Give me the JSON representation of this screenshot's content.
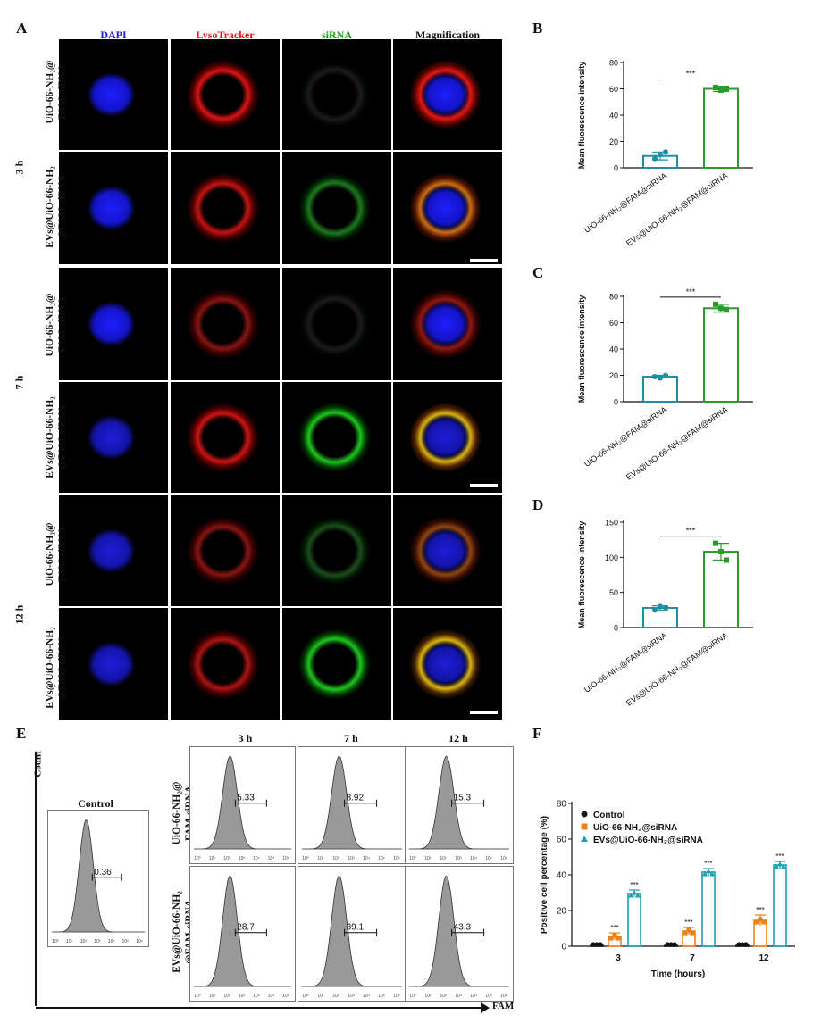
{
  "panel_letters": {
    "A": "A",
    "B": "B",
    "C": "C",
    "D": "D",
    "E": "E",
    "F": "F"
  },
  "microscopy": {
    "columns": [
      {
        "label": "DAPI",
        "color": "#1a1adc"
      },
      {
        "label": "LysoTracker",
        "color": "#e01818"
      },
      {
        "label": "siRNA",
        "color": "#18a018"
      },
      {
        "label": "Magnification",
        "color": "#111111"
      }
    ],
    "time_groups": [
      "3 h",
      "7 h",
      "12 h"
    ],
    "row_labels": {
      "uio_line1": "UiO-66-NH₂@",
      "uio_line2": "FAM-siRNA",
      "evs_line1": "EVs@UiO-66-NH₂",
      "evs_line2": "@FAM-siRNA"
    }
  },
  "chart_data": [
    {
      "panel": "B",
      "type": "bar",
      "ylabel": "Mean fluorescence intensity",
      "ylim": [
        0,
        80
      ],
      "yticks": [
        0,
        20,
        40,
        60,
        80
      ],
      "categories": [
        "UiO-66-NH₂@FAM@siRNA",
        "EVs@UiO-66-NH₂@FAM@siRNA"
      ],
      "values": [
        9,
        60
      ],
      "errors": [
        3,
        2
      ],
      "points": [
        [
          7,
          10,
          12
        ],
        [
          61,
          59,
          60
        ]
      ],
      "colors": [
        "#1d8fa0",
        "#2a9a2a"
      ],
      "significance": "***"
    },
    {
      "panel": "C",
      "type": "bar",
      "ylabel": "Mean fluorescence intensity",
      "ylim": [
        0,
        80
      ],
      "yticks": [
        0,
        20,
        40,
        60,
        80
      ],
      "categories": [
        "UiO-66-NH₂@FAM@siRNA",
        "EVs@UiO-66-NH₂@FAM@siRNA"
      ],
      "values": [
        19,
        71
      ],
      "errors": [
        1,
        3
      ],
      "points": [
        [
          19,
          18,
          20
        ],
        [
          74,
          71,
          70
        ]
      ],
      "colors": [
        "#1d8fa0",
        "#2a9a2a"
      ],
      "significance": "***"
    },
    {
      "panel": "D",
      "type": "bar",
      "ylabel": "Mean fluorescence intensity",
      "ylim": [
        0,
        150
      ],
      "yticks": [
        0,
        50,
        100,
        150
      ],
      "categories": [
        "UiO-66-NH₂@FAM@siRNA",
        "EVs@UiO-66-NH₂@FAM@siRNA"
      ],
      "values": [
        28,
        108
      ],
      "errors": [
        3,
        12
      ],
      "points": [
        [
          25,
          30,
          28
        ],
        [
          120,
          108,
          96
        ]
      ],
      "colors": [
        "#1d8fa0",
        "#2a9a2a"
      ],
      "significance": "***"
    },
    {
      "panel": "F",
      "type": "bar",
      "ylabel": "Positive cell percentage (%)",
      "xlabel": "Time (hours)",
      "ylim": [
        0,
        80
      ],
      "yticks": [
        0,
        20,
        40,
        60,
        80
      ],
      "categories": [
        "3",
        "7",
        "12"
      ],
      "series": [
        {
          "name": "Control",
          "values": [
            0.5,
            0.5,
            0.5
          ],
          "errors": [
            0.2,
            0.2,
            0.2
          ],
          "color": "#111111",
          "marker": "circle"
        },
        {
          "name": "UiO-66-NH₂@siRNA",
          "values": [
            5.5,
            8.5,
            14.5
          ],
          "errors": [
            2,
            2,
            3
          ],
          "color": "#f0801a",
          "marker": "square"
        },
        {
          "name": "EVs@UiO-66-NH₂@siRNA",
          "values": [
            29.5,
            41.5,
            45.5
          ],
          "errors": [
            2,
            2,
            2
          ],
          "color": "#1aa0b0",
          "marker": "triangle"
        }
      ],
      "significance": "***",
      "legend": "top-left"
    }
  ],
  "flow": {
    "count_label": "Count",
    "axis_label": "FAM",
    "control_title": "Control",
    "control_value": "0.36",
    "times": [
      "3 h",
      "7 h",
      "12 h"
    ],
    "uio_values": [
      "5.33",
      "8.92",
      "15.3"
    ],
    "evs_values": [
      "28.7",
      "39.1",
      "43.3"
    ],
    "tick_labels": [
      "10⁰",
      "10¹",
      "10²",
      "10³",
      "10⁴",
      "10⁵",
      "10⁶"
    ]
  }
}
